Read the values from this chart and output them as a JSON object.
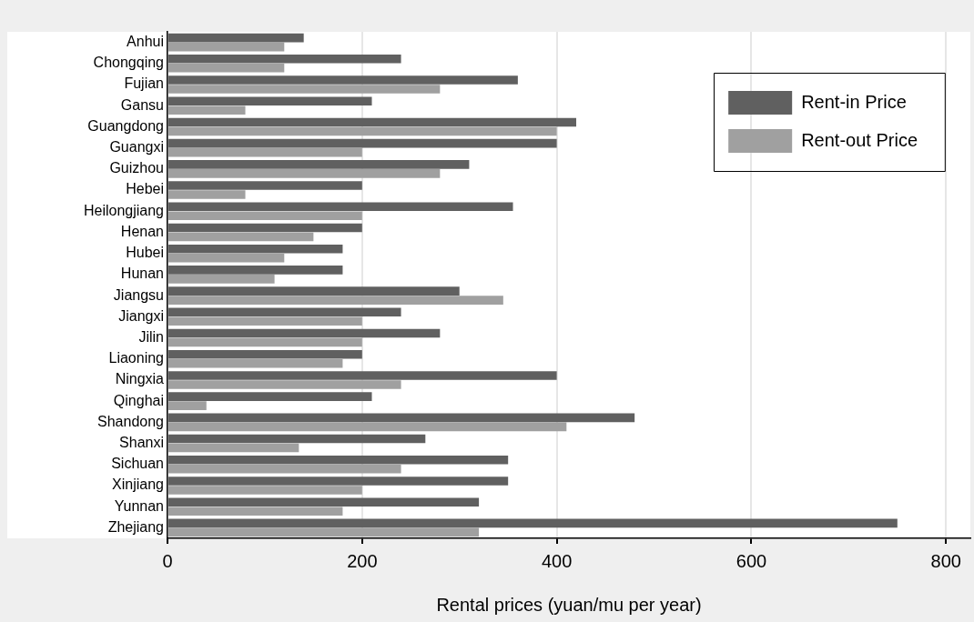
{
  "chart_data": {
    "type": "bar",
    "orientation": "horizontal",
    "xlabel": "Rental prices (yuan/mu per year)",
    "categories": [
      "Anhui",
      "Chongqing",
      "Fujian",
      "Gansu",
      "Guangdong",
      "Guangxi",
      "Guizhou",
      "Hebei",
      "Heilongjiang",
      "Henan",
      "Hubei",
      "Hunan",
      "Jiangsu",
      "Jiangxi",
      "Jilin",
      "Liaoning",
      "Ningxia",
      "Qinghai",
      "Shandong",
      "Shanxi",
      "Sichuan",
      "Xinjiang",
      "Yunnan",
      "Zhejiang"
    ],
    "series": [
      {
        "name": "Rent-in Price",
        "color": "#606060",
        "values": [
          140,
          240,
          360,
          210,
          420,
          400,
          310,
          200,
          355,
          200,
          180,
          180,
          300,
          240,
          280,
          200,
          400,
          210,
          480,
          265,
          350,
          350,
          320,
          750
        ]
      },
      {
        "name": "Rent-out Price",
        "color": "#a0a0a0",
        "values": [
          120,
          120,
          280,
          80,
          400,
          200,
          280,
          80,
          200,
          150,
          120,
          110,
          345,
          200,
          200,
          180,
          240,
          40,
          410,
          135,
          240,
          200,
          180,
          320
        ]
      }
    ],
    "xlim": [
      0,
      825
    ],
    "xticks": [
      0,
      200,
      400,
      600,
      800
    ],
    "grid": "x",
    "legend": "top right"
  }
}
